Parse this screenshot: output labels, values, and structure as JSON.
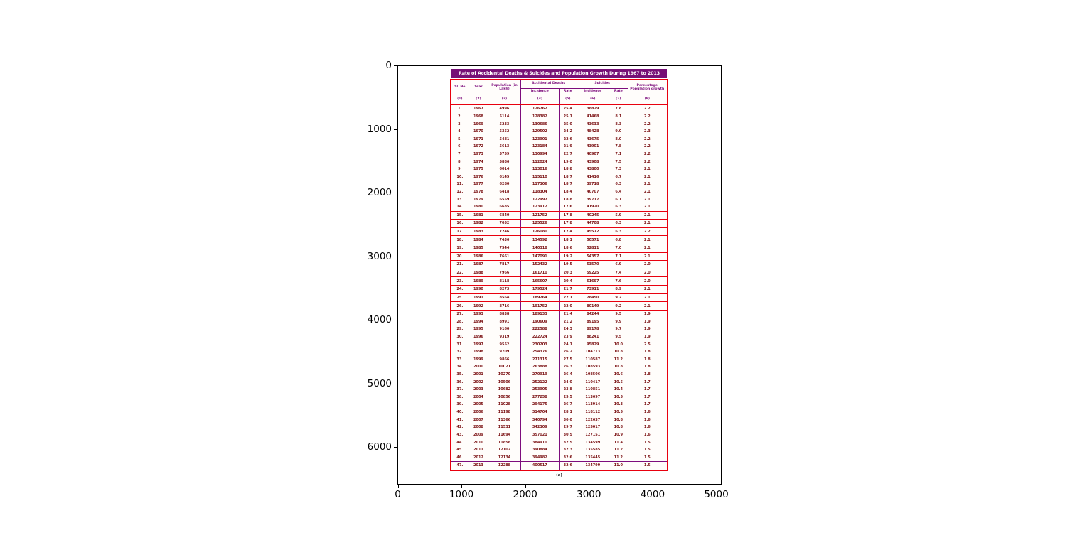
{
  "figure": {
    "background": "#ffffff",
    "axes": {
      "x_ticks": [
        "0",
        "1000",
        "2000",
        "3000",
        "4000",
        "5000"
      ],
      "y_ticks": [
        "0",
        "1000",
        "2000",
        "3000",
        "4000",
        "5000",
        "6000"
      ]
    }
  },
  "colors": {
    "title_bar_bg": "#760f76",
    "title_bar_text": "#ffffff",
    "table_border_red": "#e8000e",
    "table_line_purple": "#7d0d7d",
    "header_text": "#7d0d7d",
    "data_text": "#7b1113",
    "axis_text": "#000000"
  },
  "chart_data": {
    "type": "table",
    "title": "Rate of Accidental Deaths & Suicides and Population Growth During 1967 to 2013",
    "caption": "(a)",
    "header": {
      "col_slno": "Sl. No",
      "col_year": "Year",
      "col_population": "Population (in Lakh)",
      "group_accidental": "Accidental Deaths",
      "group_suicides": "Suicides",
      "sub_incidence": "Incidence",
      "sub_rate": "Rate",
      "col_growth": "Percentage Population growth"
    },
    "column_numbers": [
      "(1)",
      "(2)",
      "(3)",
      "(4)",
      "(5)",
      "(6)",
      "(7)",
      "(8)"
    ],
    "columns": [
      "Sl. No",
      "Year",
      "Population (in Lakh)",
      "Accidental Deaths - Incidence",
      "Accidental Deaths - Rate",
      "Suicides - Incidence",
      "Suicides - Rate",
      "Percentage Population growth"
    ],
    "rows": [
      [
        "1.",
        "1967",
        "4996",
        "126762",
        "25.4",
        "38829",
        "7.8",
        "2.2"
      ],
      [
        "2.",
        "1968",
        "5114",
        "128382",
        "25.1",
        "41468",
        "8.1",
        "2.2"
      ],
      [
        "3.",
        "1969",
        "5233",
        "130686",
        "25.0",
        "43633",
        "8.3",
        "2.2"
      ],
      [
        "4.",
        "1970",
        "5352",
        "129502",
        "24.2",
        "48428",
        "9.0",
        "2.3"
      ],
      [
        "5.",
        "1971",
        "5481",
        "123901",
        "22.6",
        "43675",
        "8.0",
        "2.2"
      ],
      [
        "6.",
        "1972",
        "5613",
        "123184",
        "21.9",
        "43901",
        "7.8",
        "2.2"
      ],
      [
        "7.",
        "1973",
        "5759",
        "130994",
        "22.7",
        "40907",
        "7.1",
        "2.2"
      ],
      [
        "8.",
        "1974",
        "5886",
        "112024",
        "19.0",
        "43908",
        "7.5",
        "2.2"
      ],
      [
        "9.",
        "1975",
        "6014",
        "113016",
        "18.8",
        "43800",
        "7.3",
        "2.1"
      ],
      [
        "10.",
        "1976",
        "6145",
        "115110",
        "18.7",
        "41416",
        "6.7",
        "2.1"
      ],
      [
        "11.",
        "1977",
        "6280",
        "117306",
        "18.7",
        "39718",
        "6.3",
        "2.1"
      ],
      [
        "12.",
        "1978",
        "6418",
        "118304",
        "18.4",
        "40707",
        "6.4",
        "2.1"
      ],
      [
        "13.",
        "1979",
        "6559",
        "122997",
        "18.8",
        "39717",
        "6.1",
        "2.1"
      ],
      [
        "14.",
        "1980",
        "6685",
        "123912",
        "17.6",
        "41920",
        "6.3",
        "2.1"
      ],
      [
        "15.",
        "1981",
        "6840",
        "121752",
        "17.8",
        "40245",
        "5.9",
        "2.1"
      ],
      [
        "16.",
        "1982",
        "7052",
        "125526",
        "17.8",
        "44708",
        "6.3",
        "2.1"
      ],
      [
        "17.",
        "1983",
        "7246",
        "126080",
        "17.4",
        "45572",
        "6.3",
        "2.2"
      ],
      [
        "18.",
        "1984",
        "7436",
        "134592",
        "18.1",
        "50571",
        "6.8",
        "2.1"
      ],
      [
        "19.",
        "1985",
        "7544",
        "140318",
        "18.6",
        "52811",
        "7.0",
        "2.1"
      ],
      [
        "20.",
        "1986",
        "7661",
        "147091",
        "19.2",
        "54357",
        "7.1",
        "2.1"
      ],
      [
        "21.",
        "1987",
        "7817",
        "152432",
        "19.5",
        "53570",
        "6.9",
        "2.0"
      ],
      [
        "22.",
        "1988",
        "7966",
        "161710",
        "20.3",
        "59225",
        "7.4",
        "2.0"
      ],
      [
        "23.",
        "1989",
        "8118",
        "165607",
        "20.4",
        "61697",
        "7.6",
        "2.0"
      ],
      [
        "24.",
        "1990",
        "8273",
        "179524",
        "21.7",
        "73911",
        "8.9",
        "2.1"
      ],
      [
        "25.",
        "1991",
        "8564",
        "189264",
        "22.1",
        "78450",
        "9.2",
        "2.1"
      ],
      [
        "26.",
        "1992",
        "8716",
        "191752",
        "22.0",
        "80149",
        "9.2",
        "2.1"
      ],
      [
        "27.",
        "1993",
        "8838",
        "189133",
        "21.4",
        "84244",
        "9.5",
        "1.9"
      ],
      [
        "28.",
        "1994",
        "8991",
        "190609",
        "21.2",
        "89195",
        "9.9",
        "1.9"
      ],
      [
        "29.",
        "1995",
        "9160",
        "222588",
        "24.3",
        "89178",
        "9.7",
        "1.9"
      ],
      [
        "30.",
        "1996",
        "9319",
        "222724",
        "23.9",
        "88241",
        "9.5",
        "1.9"
      ],
      [
        "31.",
        "1997",
        "9552",
        "230203",
        "24.1",
        "95829",
        "10.0",
        "2.5"
      ],
      [
        "32.",
        "1998",
        "9709",
        "254376",
        "26.2",
        "104713",
        "10.8",
        "1.8"
      ],
      [
        "33.",
        "1999",
        "9866",
        "271315",
        "27.5",
        "110587",
        "11.2",
        "1.8"
      ],
      [
        "34.",
        "2000",
        "10021",
        "263888",
        "26.3",
        "108593",
        "10.8",
        "1.8"
      ],
      [
        "35.",
        "2001",
        "10270",
        "270919",
        "26.4",
        "108506",
        "10.6",
        "1.8"
      ],
      [
        "36.",
        "2002",
        "10506",
        "252122",
        "24.0",
        "110417",
        "10.5",
        "1.7"
      ],
      [
        "37.",
        "2003",
        "10682",
        "253905",
        "23.8",
        "110851",
        "10.4",
        "1.7"
      ],
      [
        "38.",
        "2004",
        "10856",
        "277258",
        "25.5",
        "113697",
        "10.5",
        "1.7"
      ],
      [
        "39.",
        "2005",
        "11028",
        "294175",
        "26.7",
        "113914",
        "10.3",
        "1.7"
      ],
      [
        "40.",
        "2006",
        "11198",
        "314704",
        "28.1",
        "118112",
        "10.5",
        "1.6"
      ],
      [
        "41.",
        "2007",
        "11366",
        "340794",
        "30.0",
        "122637",
        "10.8",
        "1.6"
      ],
      [
        "42.",
        "2008",
        "11531",
        "342309",
        "29.7",
        "125017",
        "10.8",
        "1.6"
      ],
      [
        "43.",
        "2009",
        "11694",
        "357021",
        "30.5",
        "127151",
        "10.9",
        "1.6"
      ],
      [
        "44.",
        "2010",
        "11858",
        "384910",
        "32.5",
        "134599",
        "11.4",
        "1.5"
      ],
      [
        "45.",
        "2011",
        "12102",
        "390884",
        "32.3",
        "135585",
        "11.2",
        "1.5"
      ],
      [
        "46.",
        "2012",
        "12134",
        "394982",
        "32.6",
        "135445",
        "11.2",
        "1.5"
      ],
      [
        "47.",
        "2013",
        "12288",
        "400517",
        "32.6",
        "134799",
        "11.0",
        "1.5"
      ]
    ],
    "sections": {
      "red_box_rows_1_to": 14,
      "individually_boxed_rows": [
        15,
        26
      ],
      "purple_line_above_row": 47
    },
    "layout_hints": {
      "x_range": [
        0,
        5090
      ],
      "y_range": [
        6590,
        0
      ],
      "grid": false
    }
  }
}
